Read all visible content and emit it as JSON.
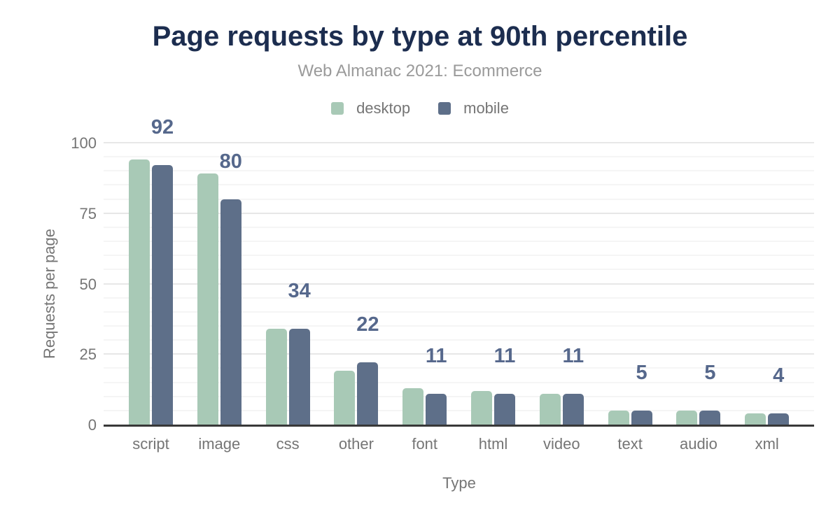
{
  "header": {
    "title": "Page requests by type at 90th percentile",
    "subtitle": "Web Almanac 2021: Ecommerce"
  },
  "colors": {
    "title": "#1c2d4f",
    "subtitle": "#9a9a9a",
    "axis_text": "#757575",
    "annotation_text": "#56688c",
    "desktop": "#a8c9b6",
    "mobile": "#5e6f89",
    "axis_line": "#383838",
    "gridline_major": "#e7e7e7",
    "gridline_minor": "#f5f5f5",
    "background": "#ffffff"
  },
  "chart_data": {
    "type": "bar",
    "title": "Page requests by type at 90th percentile",
    "subtitle": "Web Almanac 2021: Ecommerce",
    "categories": [
      "script",
      "image",
      "css",
      "other",
      "font",
      "html",
      "video",
      "text",
      "audio",
      "xml"
    ],
    "series": [
      {
        "name": "desktop",
        "color": "#a8c9b6",
        "values": [
          94,
          89,
          34,
          19,
          13,
          12,
          11,
          5,
          5,
          4
        ]
      },
      {
        "name": "mobile",
        "color": "#5e6f89",
        "values": [
          92,
          80,
          34,
          22,
          11,
          11,
          11,
          5,
          5,
          4
        ]
      }
    ],
    "annotations": {
      "series": "mobile",
      "labels": [
        "92",
        "80",
        "34",
        "22",
        "11",
        "11",
        "11",
        "5",
        "5",
        "4"
      ]
    },
    "xlabel": "Type",
    "ylabel": "Requests per page",
    "ylim": [
      0,
      100
    ],
    "yticks": [
      0,
      25,
      50,
      75,
      100
    ],
    "grid": {
      "major_step": 25,
      "minor_step": 5,
      "visible": true
    },
    "legend_position": "top"
  }
}
